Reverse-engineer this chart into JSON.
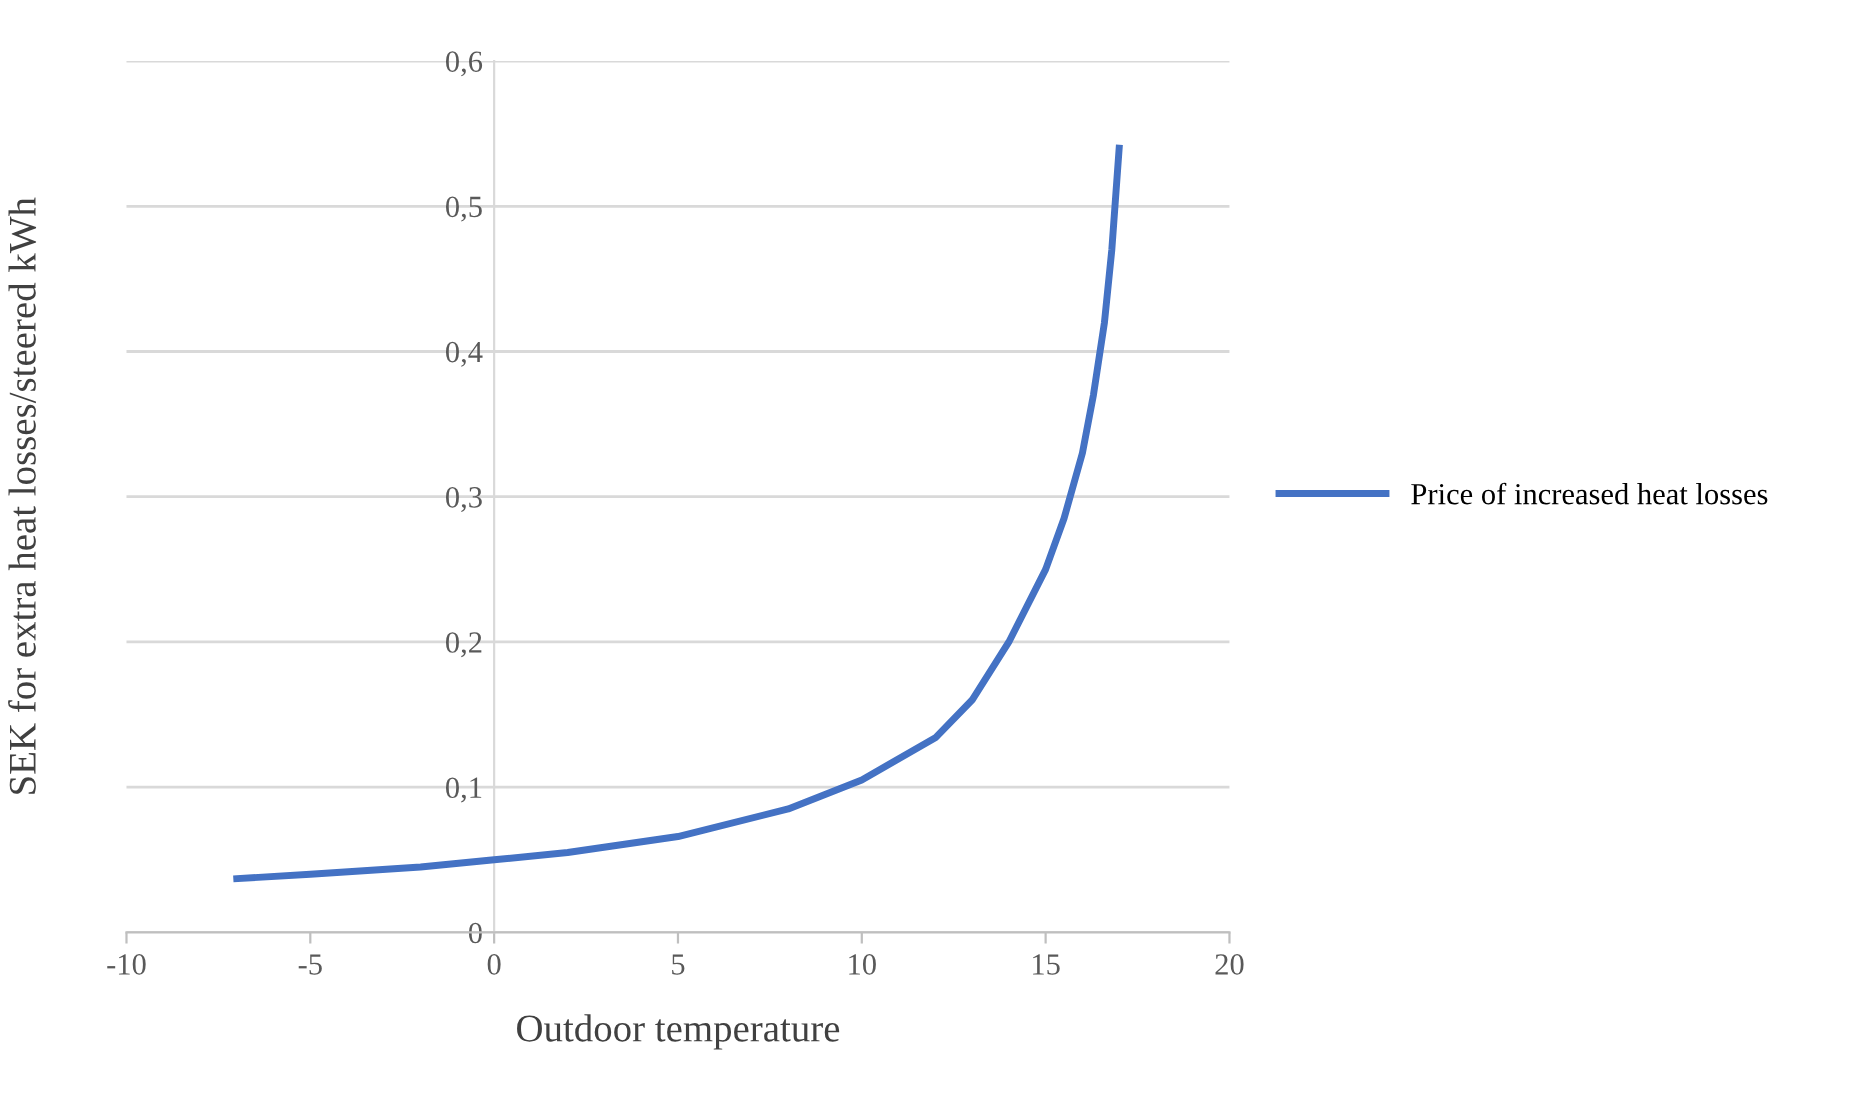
{
  "chart_data": {
    "type": "line",
    "xlabel": "Outdoor temperature",
    "ylabel": "SEK for extra heat losses/steered kWh",
    "series": [
      {
        "name": "Price of increased heat losses",
        "color": "#4472c4",
        "x": [
          -7,
          -5,
          -2,
          0,
          2,
          5,
          8,
          10,
          12,
          13,
          14,
          15,
          15.5,
          16,
          16.3,
          16.6,
          16.8,
          17
        ],
        "values": [
          0.037,
          0.04,
          0.045,
          0.05,
          0.055,
          0.066,
          0.085,
          0.105,
          0.134,
          0.16,
          0.2,
          0.25,
          0.285,
          0.33,
          0.37,
          0.42,
          0.47,
          0.54
        ]
      }
    ],
    "xlim": [
      -10,
      20
    ],
    "xticks": [
      -10,
      -5,
      0,
      5,
      10,
      15,
      20
    ],
    "ylim": [
      0,
      0.6
    ],
    "yticks": [
      0,
      {
        "value": 0.1,
        "label": "0,1"
      },
      {
        "value": 0.2,
        "label": "0,2"
      },
      {
        "value": 0.3,
        "label": "0,3"
      },
      {
        "value": 0.4,
        "label": "0,4"
      },
      {
        "value": 0.5,
        "label": "0,5"
      },
      {
        "value": 0.6,
        "label": "0,6"
      }
    ],
    "grid": "y",
    "legend": "right",
    "marker": "none",
    "line_style": "solid"
  }
}
